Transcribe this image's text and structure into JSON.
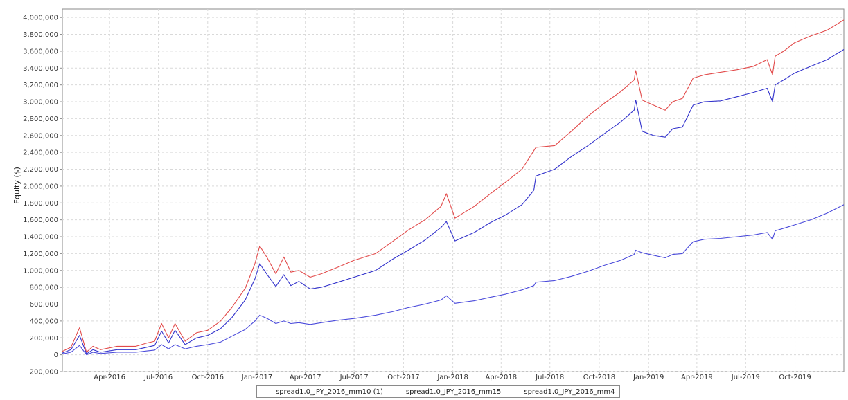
{
  "chart_data": {
    "type": "line",
    "title": "",
    "xlabel": "",
    "ylabel": "Equity ($)",
    "ylim": [
      -200000,
      4100000
    ],
    "yticks": [
      -200000,
      0,
      200000,
      400000,
      600000,
      800000,
      1000000,
      1200000,
      1400000,
      1600000,
      1800000,
      2000000,
      2200000,
      2400000,
      2600000,
      2800000,
      3000000,
      3200000,
      3400000,
      3600000,
      3800000,
      4000000
    ],
    "ytick_labels": [
      "-200,000",
      "0",
      "200,000",
      "400,000",
      "600,000",
      "800,000",
      "1,000,000",
      "1,200,000",
      "1,400,000",
      "1,600,000",
      "1,800,000",
      "2,000,000",
      "2,200,000",
      "2,400,000",
      "2,600,000",
      "2,800,000",
      "3,000,000",
      "3,200,000",
      "3,400,000",
      "3,600,000",
      "3,800,000",
      "4,000,000"
    ],
    "xlim": [
      "2016-01-04",
      "2019-12-31"
    ],
    "xticks": [
      "2016-04-01",
      "2016-07-01",
      "2016-10-01",
      "2017-01-01",
      "2017-04-01",
      "2017-07-01",
      "2017-10-01",
      "2018-01-01",
      "2018-04-01",
      "2018-07-01",
      "2018-10-01",
      "2019-01-01",
      "2019-04-01",
      "2019-07-01",
      "2019-10-01"
    ],
    "xtick_labels": [
      "Apr-2016",
      "Jul-2016",
      "Oct-2016",
      "Jan-2017",
      "Apr-2017",
      "Jul-2017",
      "Oct-2017",
      "Jan-2018",
      "Apr-2018",
      "Jul-2018",
      "Oct-2018",
      "Jan-2019",
      "Apr-2019",
      "Jul-2019",
      "Oct-2019"
    ],
    "grid": true,
    "legend_position": "bottom-center",
    "series": [
      {
        "name": "spread1.0_JPY_2016_mm10 (1)",
        "color": "#3333cc",
        "x": [
          "2016-01-04",
          "2016-01-20",
          "2016-02-05",
          "2016-02-18",
          "2016-03-01",
          "2016-03-15",
          "2016-04-15",
          "2016-05-20",
          "2016-06-10",
          "2016-06-24",
          "2016-07-07",
          "2016-07-20",
          "2016-08-01",
          "2016-08-20",
          "2016-09-10",
          "2016-10-01",
          "2016-10-25",
          "2016-11-15",
          "2016-12-10",
          "2016-12-28",
          "2017-01-06",
          "2017-01-20",
          "2017-02-05",
          "2017-02-20",
          "2017-03-05",
          "2017-03-20",
          "2017-04-10",
          "2017-05-01",
          "2017-06-01",
          "2017-07-01",
          "2017-08-10",
          "2017-09-10",
          "2017-10-10",
          "2017-11-10",
          "2017-12-10",
          "2017-12-20",
          "2018-01-05",
          "2018-02-10",
          "2018-03-10",
          "2018-04-10",
          "2018-05-10",
          "2018-06-01",
          "2018-06-05",
          "2018-07-10",
          "2018-08-10",
          "2018-09-10",
          "2018-10-10",
          "2018-11-10",
          "2018-12-05",
          "2018-12-08",
          "2018-12-20",
          "2019-01-10",
          "2019-02-01",
          "2019-02-15",
          "2019-03-05",
          "2019-03-25",
          "2019-04-15",
          "2019-05-15",
          "2019-06-15",
          "2019-07-15",
          "2019-08-10",
          "2019-08-20",
          "2019-08-25",
          "2019-09-10",
          "2019-09-30",
          "2019-10-30",
          "2019-11-30",
          "2019-12-31"
        ],
        "values": [
          20000,
          60000,
          230000,
          10000,
          60000,
          30000,
          60000,
          60000,
          90000,
          110000,
          280000,
          140000,
          290000,
          120000,
          200000,
          230000,
          310000,
          440000,
          650000,
          900000,
          1080000,
          950000,
          810000,
          950000,
          820000,
          870000,
          780000,
          800000,
          860000,
          920000,
          1000000,
          1130000,
          1240000,
          1360000,
          1510000,
          1580000,
          1350000,
          1450000,
          1560000,
          1660000,
          1780000,
          1950000,
          2120000,
          2200000,
          2350000,
          2480000,
          2620000,
          2760000,
          2900000,
          3020000,
          2650000,
          2600000,
          2580000,
          2680000,
          2700000,
          2960000,
          3000000,
          3010000,
          3060000,
          3110000,
          3160000,
          3000000,
          3200000,
          3260000,
          3340000,
          3420000,
          3500000,
          3620000
        ]
      },
      {
        "name": "spread1.0_JPY_2016_mm15",
        "color": "#e24a4a",
        "x": [
          "2016-01-04",
          "2016-01-20",
          "2016-02-05",
          "2016-02-18",
          "2016-03-01",
          "2016-03-15",
          "2016-04-15",
          "2016-05-20",
          "2016-06-10",
          "2016-06-24",
          "2016-07-07",
          "2016-07-20",
          "2016-08-01",
          "2016-08-20",
          "2016-09-10",
          "2016-10-01",
          "2016-10-25",
          "2016-11-15",
          "2016-12-10",
          "2016-12-28",
          "2017-01-06",
          "2017-01-20",
          "2017-02-05",
          "2017-02-20",
          "2017-03-05",
          "2017-03-20",
          "2017-04-10",
          "2017-05-01",
          "2017-06-01",
          "2017-07-01",
          "2017-08-10",
          "2017-09-10",
          "2017-10-10",
          "2017-11-10",
          "2017-12-10",
          "2017-12-20",
          "2018-01-05",
          "2018-02-10",
          "2018-03-10",
          "2018-04-10",
          "2018-05-10",
          "2018-06-01",
          "2018-06-05",
          "2018-07-10",
          "2018-08-10",
          "2018-09-10",
          "2018-10-10",
          "2018-11-10",
          "2018-12-05",
          "2018-12-08",
          "2018-12-20",
          "2019-01-10",
          "2019-02-01",
          "2019-02-15",
          "2019-03-05",
          "2019-03-25",
          "2019-04-15",
          "2019-05-15",
          "2019-06-15",
          "2019-07-15",
          "2019-08-10",
          "2019-08-20",
          "2019-08-25",
          "2019-09-10",
          "2019-09-30",
          "2019-10-30",
          "2019-11-30",
          "2019-12-31"
        ],
        "values": [
          40000,
          90000,
          320000,
          30000,
          100000,
          60000,
          100000,
          100000,
          140000,
          160000,
          370000,
          200000,
          370000,
          160000,
          260000,
          290000,
          400000,
          560000,
          790000,
          1080000,
          1290000,
          1150000,
          960000,
          1160000,
          980000,
          1000000,
          920000,
          960000,
          1040000,
          1120000,
          1200000,
          1340000,
          1480000,
          1600000,
          1760000,
          1910000,
          1620000,
          1760000,
          1900000,
          2050000,
          2200000,
          2420000,
          2460000,
          2480000,
          2650000,
          2830000,
          2980000,
          3120000,
          3260000,
          3370000,
          3020000,
          2960000,
          2900000,
          3000000,
          3040000,
          3280000,
          3320000,
          3350000,
          3380000,
          3420000,
          3500000,
          3320000,
          3540000,
          3600000,
          3700000,
          3780000,
          3850000,
          3970000
        ]
      },
      {
        "name": "spread1.0_JPY_2016_mm4",
        "color": "#4b4bdb",
        "x": [
          "2016-01-04",
          "2016-01-20",
          "2016-02-05",
          "2016-02-18",
          "2016-03-01",
          "2016-03-15",
          "2016-04-15",
          "2016-05-20",
          "2016-06-10",
          "2016-06-24",
          "2016-07-07",
          "2016-07-20",
          "2016-08-01",
          "2016-08-20",
          "2016-09-10",
          "2016-10-01",
          "2016-10-25",
          "2016-11-15",
          "2016-12-10",
          "2016-12-28",
          "2017-01-06",
          "2017-01-20",
          "2017-02-05",
          "2017-02-20",
          "2017-03-05",
          "2017-03-20",
          "2017-04-10",
          "2017-05-01",
          "2017-06-01",
          "2017-07-01",
          "2017-08-10",
          "2017-09-10",
          "2017-10-10",
          "2017-11-10",
          "2017-12-10",
          "2017-12-20",
          "2018-01-05",
          "2018-02-10",
          "2018-03-10",
          "2018-04-10",
          "2018-05-10",
          "2018-06-01",
          "2018-06-05",
          "2018-07-10",
          "2018-08-10",
          "2018-09-10",
          "2018-10-10",
          "2018-11-10",
          "2018-12-05",
          "2018-12-08",
          "2018-12-20",
          "2019-01-10",
          "2019-02-01",
          "2019-02-15",
          "2019-03-05",
          "2019-03-25",
          "2019-04-15",
          "2019-05-15",
          "2019-06-15",
          "2019-07-15",
          "2019-08-10",
          "2019-08-20",
          "2019-08-25",
          "2019-09-10",
          "2019-09-30",
          "2019-10-30",
          "2019-11-30",
          "2019-12-31"
        ],
        "values": [
          10000,
          30000,
          110000,
          0,
          30000,
          15000,
          30000,
          30000,
          45000,
          55000,
          120000,
          70000,
          120000,
          70000,
          100000,
          120000,
          150000,
          220000,
          300000,
          400000,
          470000,
          430000,
          370000,
          400000,
          370000,
          380000,
          360000,
          380000,
          410000,
          430000,
          470000,
          510000,
          560000,
          600000,
          650000,
          700000,
          610000,
          640000,
          680000,
          720000,
          770000,
          820000,
          860000,
          880000,
          930000,
          990000,
          1060000,
          1120000,
          1190000,
          1240000,
          1210000,
          1180000,
          1150000,
          1190000,
          1200000,
          1340000,
          1370000,
          1380000,
          1400000,
          1420000,
          1450000,
          1370000,
          1470000,
          1500000,
          1540000,
          1600000,
          1680000,
          1780000
        ]
      }
    ]
  }
}
